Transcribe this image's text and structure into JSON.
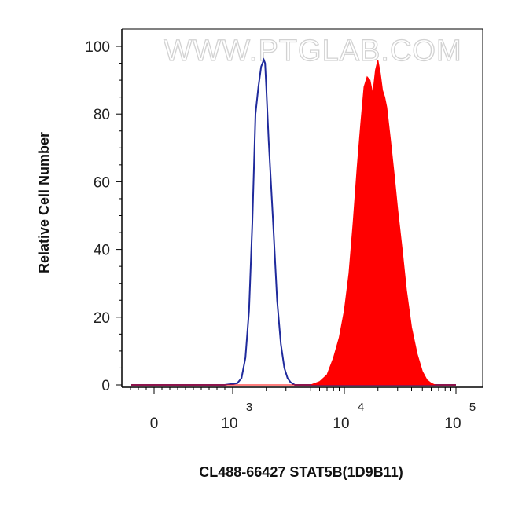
{
  "chart_data": {
    "type": "area",
    "xlabel": "CL488-66427 STAT5B(1D9B11)",
    "ylabel": "Relative Cell Number",
    "x_scale": "biexponential",
    "ylim": [
      0,
      100
    ],
    "y_ticks": [
      0,
      20,
      40,
      60,
      80,
      100
    ],
    "x_tick_labels": [
      {
        "value": 0,
        "base": "0",
        "exp": ""
      },
      {
        "value": 1000,
        "base": "10",
        "exp": "3"
      },
      {
        "value": 10000,
        "base": "10",
        "exp": "4"
      },
      {
        "value": 100000,
        "base": "10",
        "exp": "5"
      }
    ],
    "grid": false,
    "watermark": "WWW.PTGLAB.COM",
    "series": [
      {
        "style": "outline",
        "color": "#1f2a9c",
        "points": [
          [
            -300,
            0
          ],
          [
            900,
            0
          ],
          [
            1100,
            0.5
          ],
          [
            1200,
            2
          ],
          [
            1300,
            8
          ],
          [
            1400,
            22
          ],
          [
            1500,
            48
          ],
          [
            1600,
            80
          ],
          [
            1700,
            88
          ],
          [
            1800,
            94
          ],
          [
            1900,
            96
          ],
          [
            1950,
            95
          ],
          [
            2000,
            88
          ],
          [
            2100,
            72
          ],
          [
            2300,
            48
          ],
          [
            2500,
            25
          ],
          [
            2700,
            12
          ],
          [
            2900,
            5
          ],
          [
            3100,
            2
          ],
          [
            3300,
            0.8
          ],
          [
            3600,
            0
          ],
          [
            100000,
            0
          ]
        ]
      },
      {
        "style": "filled",
        "color": "#ff0000",
        "points": [
          [
            -300,
            0
          ],
          [
            5000,
            0
          ],
          [
            6000,
            1
          ],
          [
            7000,
            3
          ],
          [
            8000,
            8
          ],
          [
            9000,
            14
          ],
          [
            10000,
            22
          ],
          [
            11000,
            33
          ],
          [
            12000,
            48
          ],
          [
            13000,
            64
          ],
          [
            14000,
            77
          ],
          [
            15000,
            88
          ],
          [
            16000,
            91
          ],
          [
            17000,
            90
          ],
          [
            18000,
            86
          ],
          [
            19000,
            93
          ],
          [
            20000,
            96
          ],
          [
            21000,
            92
          ],
          [
            22000,
            87
          ],
          [
            23000,
            85
          ],
          [
            24000,
            82
          ],
          [
            26000,
            72
          ],
          [
            28000,
            62
          ],
          [
            30000,
            52
          ],
          [
            33000,
            40
          ],
          [
            36000,
            28
          ],
          [
            40000,
            17
          ],
          [
            45000,
            9
          ],
          [
            50000,
            4
          ],
          [
            55000,
            1.5
          ],
          [
            60000,
            0.5
          ],
          [
            65000,
            0
          ],
          [
            100000,
            0
          ]
        ]
      }
    ]
  }
}
